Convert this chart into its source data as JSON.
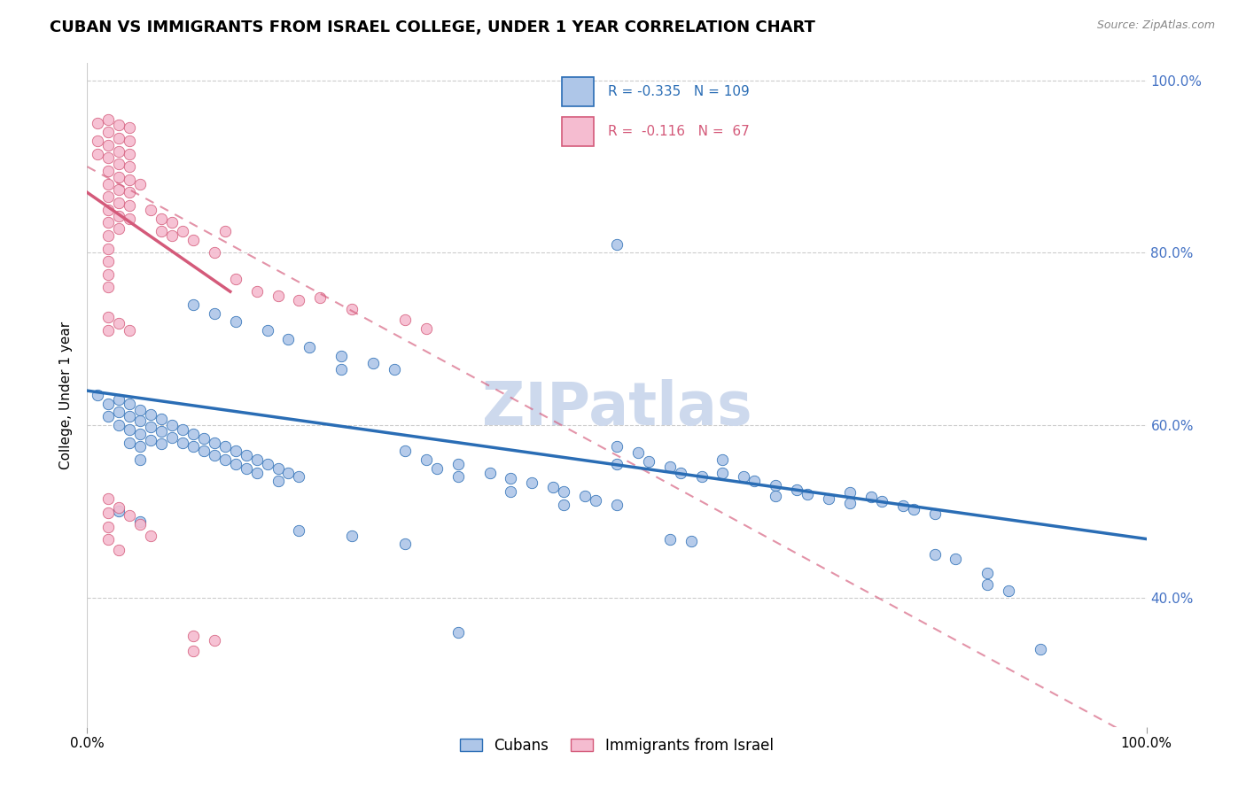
{
  "title": "CUBAN VS IMMIGRANTS FROM ISRAEL COLLEGE, UNDER 1 YEAR CORRELATION CHART",
  "source": "Source: ZipAtlas.com",
  "ylabel": "College, Under 1 year",
  "watermark": "ZIPatlas",
  "blue_color": "#aec6e8",
  "blue_line_color": "#2a6db5",
  "pink_color": "#f5bcd0",
  "pink_line_color": "#d45a7a",
  "blue_scatter": [
    [
      0.01,
      0.635
    ],
    [
      0.02,
      0.625
    ],
    [
      0.02,
      0.61
    ],
    [
      0.03,
      0.63
    ],
    [
      0.03,
      0.615
    ],
    [
      0.03,
      0.6
    ],
    [
      0.04,
      0.625
    ],
    [
      0.04,
      0.61
    ],
    [
      0.04,
      0.595
    ],
    [
      0.04,
      0.58
    ],
    [
      0.05,
      0.618
    ],
    [
      0.05,
      0.605
    ],
    [
      0.05,
      0.59
    ],
    [
      0.05,
      0.575
    ],
    [
      0.05,
      0.56
    ],
    [
      0.06,
      0.612
    ],
    [
      0.06,
      0.598
    ],
    [
      0.06,
      0.583
    ],
    [
      0.07,
      0.607
    ],
    [
      0.07,
      0.593
    ],
    [
      0.07,
      0.578
    ],
    [
      0.08,
      0.6
    ],
    [
      0.08,
      0.586
    ],
    [
      0.09,
      0.595
    ],
    [
      0.09,
      0.58
    ],
    [
      0.1,
      0.59
    ],
    [
      0.1,
      0.575
    ],
    [
      0.11,
      0.585
    ],
    [
      0.11,
      0.57
    ],
    [
      0.12,
      0.58
    ],
    [
      0.12,
      0.565
    ],
    [
      0.13,
      0.575
    ],
    [
      0.13,
      0.56
    ],
    [
      0.14,
      0.57
    ],
    [
      0.14,
      0.555
    ],
    [
      0.15,
      0.565
    ],
    [
      0.15,
      0.55
    ],
    [
      0.16,
      0.56
    ],
    [
      0.16,
      0.545
    ],
    [
      0.17,
      0.555
    ],
    [
      0.18,
      0.55
    ],
    [
      0.18,
      0.535
    ],
    [
      0.19,
      0.545
    ],
    [
      0.2,
      0.54
    ],
    [
      0.1,
      0.74
    ],
    [
      0.12,
      0.73
    ],
    [
      0.14,
      0.72
    ],
    [
      0.17,
      0.71
    ],
    [
      0.19,
      0.7
    ],
    [
      0.21,
      0.69
    ],
    [
      0.24,
      0.68
    ],
    [
      0.24,
      0.665
    ],
    [
      0.27,
      0.672
    ],
    [
      0.29,
      0.665
    ],
    [
      0.3,
      0.57
    ],
    [
      0.32,
      0.56
    ],
    [
      0.33,
      0.55
    ],
    [
      0.35,
      0.555
    ],
    [
      0.35,
      0.54
    ],
    [
      0.38,
      0.545
    ],
    [
      0.4,
      0.538
    ],
    [
      0.4,
      0.523
    ],
    [
      0.42,
      0.533
    ],
    [
      0.44,
      0.528
    ],
    [
      0.45,
      0.523
    ],
    [
      0.45,
      0.508
    ],
    [
      0.47,
      0.518
    ],
    [
      0.48,
      0.513
    ],
    [
      0.5,
      0.508
    ],
    [
      0.5,
      0.575
    ],
    [
      0.52,
      0.568
    ],
    [
      0.53,
      0.558
    ],
    [
      0.55,
      0.552
    ],
    [
      0.56,
      0.545
    ],
    [
      0.58,
      0.54
    ],
    [
      0.6,
      0.56
    ],
    [
      0.6,
      0.545
    ],
    [
      0.62,
      0.54
    ],
    [
      0.63,
      0.535
    ],
    [
      0.65,
      0.53
    ],
    [
      0.65,
      0.518
    ],
    [
      0.67,
      0.525
    ],
    [
      0.68,
      0.52
    ],
    [
      0.7,
      0.515
    ],
    [
      0.72,
      0.51
    ],
    [
      0.72,
      0.522
    ],
    [
      0.74,
      0.517
    ],
    [
      0.75,
      0.512
    ],
    [
      0.77,
      0.507
    ],
    [
      0.78,
      0.502
    ],
    [
      0.8,
      0.497
    ],
    [
      0.8,
      0.45
    ],
    [
      0.82,
      0.445
    ],
    [
      0.85,
      0.428
    ],
    [
      0.85,
      0.415
    ],
    [
      0.87,
      0.408
    ],
    [
      0.9,
      0.34
    ],
    [
      0.03,
      0.5
    ],
    [
      0.05,
      0.488
    ],
    [
      0.2,
      0.478
    ],
    [
      0.25,
      0.472
    ],
    [
      0.3,
      0.462
    ],
    [
      0.55,
      0.468
    ],
    [
      0.57,
      0.465
    ],
    [
      0.5,
      0.81
    ],
    [
      0.5,
      0.555
    ],
    [
      0.35,
      0.36
    ]
  ],
  "pink_scatter": [
    [
      0.01,
      0.95
    ],
    [
      0.01,
      0.93
    ],
    [
      0.01,
      0.915
    ],
    [
      0.02,
      0.955
    ],
    [
      0.02,
      0.94
    ],
    [
      0.02,
      0.925
    ],
    [
      0.02,
      0.91
    ],
    [
      0.02,
      0.895
    ],
    [
      0.02,
      0.88
    ],
    [
      0.02,
      0.865
    ],
    [
      0.02,
      0.85
    ],
    [
      0.02,
      0.835
    ],
    [
      0.02,
      0.82
    ],
    [
      0.02,
      0.805
    ],
    [
      0.02,
      0.79
    ],
    [
      0.02,
      0.775
    ],
    [
      0.02,
      0.76
    ],
    [
      0.03,
      0.948
    ],
    [
      0.03,
      0.933
    ],
    [
      0.03,
      0.918
    ],
    [
      0.03,
      0.903
    ],
    [
      0.03,
      0.888
    ],
    [
      0.03,
      0.873
    ],
    [
      0.03,
      0.858
    ],
    [
      0.03,
      0.843
    ],
    [
      0.03,
      0.828
    ],
    [
      0.04,
      0.945
    ],
    [
      0.04,
      0.93
    ],
    [
      0.04,
      0.915
    ],
    [
      0.04,
      0.9
    ],
    [
      0.04,
      0.885
    ],
    [
      0.04,
      0.87
    ],
    [
      0.04,
      0.855
    ],
    [
      0.04,
      0.84
    ],
    [
      0.05,
      0.88
    ],
    [
      0.06,
      0.85
    ],
    [
      0.07,
      0.84
    ],
    [
      0.07,
      0.825
    ],
    [
      0.08,
      0.835
    ],
    [
      0.08,
      0.82
    ],
    [
      0.09,
      0.825
    ],
    [
      0.1,
      0.815
    ],
    [
      0.12,
      0.8
    ],
    [
      0.13,
      0.825
    ],
    [
      0.02,
      0.725
    ],
    [
      0.02,
      0.71
    ],
    [
      0.03,
      0.718
    ],
    [
      0.04,
      0.71
    ],
    [
      0.14,
      0.77
    ],
    [
      0.16,
      0.755
    ],
    [
      0.18,
      0.75
    ],
    [
      0.2,
      0.745
    ],
    [
      0.22,
      0.748
    ],
    [
      0.25,
      0.735
    ],
    [
      0.3,
      0.722
    ],
    [
      0.32,
      0.712
    ],
    [
      0.02,
      0.515
    ],
    [
      0.02,
      0.498
    ],
    [
      0.02,
      0.482
    ],
    [
      0.03,
      0.505
    ],
    [
      0.04,
      0.495
    ],
    [
      0.05,
      0.485
    ],
    [
      0.06,
      0.472
    ],
    [
      0.02,
      0.468
    ],
    [
      0.03,
      0.455
    ],
    [
      0.1,
      0.355
    ],
    [
      0.1,
      0.338
    ],
    [
      0.12,
      0.35
    ]
  ],
  "blue_trend": [
    0.0,
    1.0,
    0.64,
    0.468
  ],
  "pink_solid_trend": [
    0.0,
    0.135,
    0.87,
    0.755
  ],
  "pink_dash_trend": [
    0.0,
    1.0,
    0.9,
    0.23
  ],
  "xlim": [
    0.0,
    1.0
  ],
  "ylim": [
    0.25,
    1.02
  ],
  "right_yticks": [
    0.4,
    0.6,
    0.8,
    1.0
  ],
  "right_yticklabels": [
    "40.0%",
    "60.0%",
    "80.0%",
    "100.0%"
  ],
  "grid_color": "#cccccc",
  "watermark_color": "#cdd9ed",
  "background_color": "#ffffff",
  "title_fontsize": 13,
  "axis_color": "#4472c4"
}
